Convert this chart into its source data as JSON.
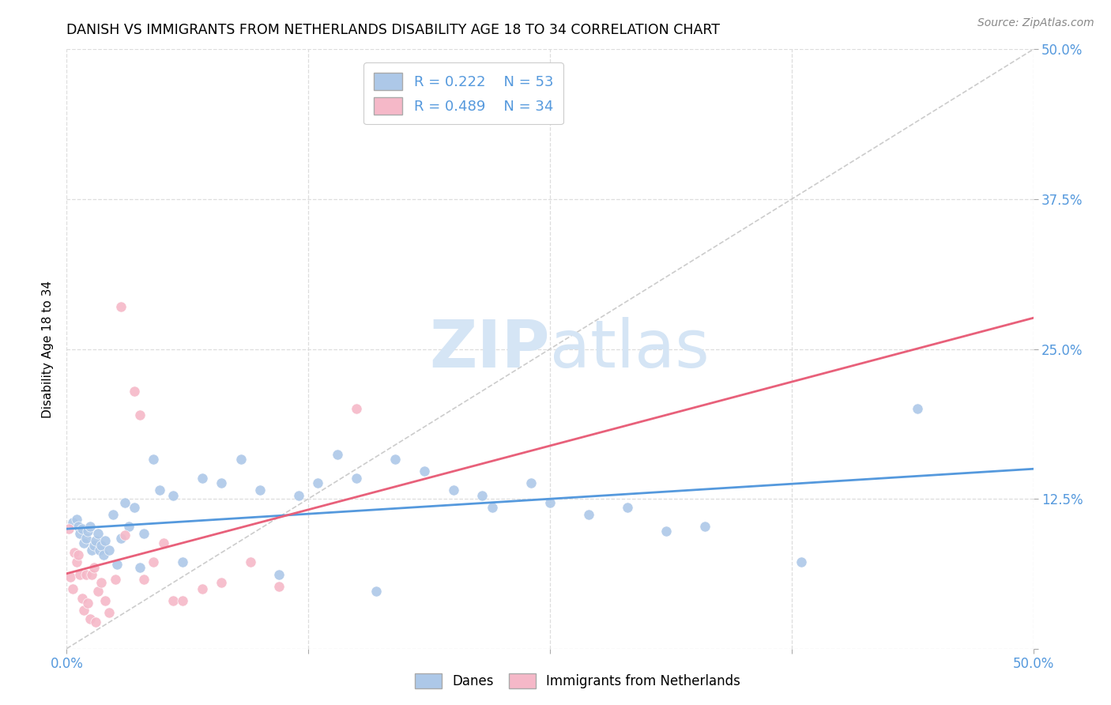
{
  "title": "DANISH VS IMMIGRANTS FROM NETHERLANDS DISABILITY AGE 18 TO 34 CORRELATION CHART",
  "source": "Source: ZipAtlas.com",
  "ylabel": "Disability Age 18 to 34",
  "xlim": [
    0.0,
    0.5
  ],
  "ylim": [
    0.0,
    0.5
  ],
  "dane_color": "#adc8e8",
  "immigrant_color": "#f5b8c8",
  "dane_line_color": "#5599dd",
  "immigrant_line_color": "#e8607a",
  "diagonal_color": "#cccccc",
  "grid_color": "#dddddd",
  "watermark_text": "ZIPatlas",
  "watermark_color": "#d5e5f5",
  "legend_r1": "R = 0.222",
  "legend_n1": "N = 53",
  "legend_r2": "R = 0.489",
  "legend_n2": "N = 34",
  "danes_points_x": [
    0.003,
    0.005,
    0.006,
    0.007,
    0.008,
    0.009,
    0.01,
    0.011,
    0.012,
    0.013,
    0.014,
    0.015,
    0.016,
    0.017,
    0.018,
    0.019,
    0.02,
    0.022,
    0.024,
    0.026,
    0.028,
    0.03,
    0.032,
    0.035,
    0.038,
    0.04,
    0.045,
    0.048,
    0.055,
    0.06,
    0.07,
    0.08,
    0.09,
    0.1,
    0.11,
    0.12,
    0.13,
    0.14,
    0.15,
    0.16,
    0.17,
    0.185,
    0.2,
    0.215,
    0.22,
    0.24,
    0.25,
    0.27,
    0.29,
    0.31,
    0.33,
    0.38,
    0.44
  ],
  "danes_points_y": [
    0.105,
    0.108,
    0.102,
    0.096,
    0.1,
    0.088,
    0.092,
    0.098,
    0.102,
    0.082,
    0.086,
    0.09,
    0.096,
    0.082,
    0.086,
    0.078,
    0.09,
    0.082,
    0.112,
    0.07,
    0.092,
    0.122,
    0.102,
    0.118,
    0.068,
    0.096,
    0.158,
    0.132,
    0.128,
    0.072,
    0.142,
    0.138,
    0.158,
    0.132,
    0.062,
    0.128,
    0.138,
    0.162,
    0.142,
    0.048,
    0.158,
    0.148,
    0.132,
    0.128,
    0.118,
    0.138,
    0.122,
    0.112,
    0.118,
    0.098,
    0.102,
    0.072,
    0.2
  ],
  "immigrants_points_x": [
    0.001,
    0.002,
    0.003,
    0.004,
    0.005,
    0.006,
    0.007,
    0.008,
    0.009,
    0.01,
    0.011,
    0.012,
    0.013,
    0.014,
    0.015,
    0.016,
    0.018,
    0.02,
    0.022,
    0.025,
    0.028,
    0.03,
    0.035,
    0.038,
    0.04,
    0.045,
    0.05,
    0.055,
    0.06,
    0.07,
    0.08,
    0.095,
    0.11,
    0.15
  ],
  "immigrants_points_y": [
    0.1,
    0.06,
    0.05,
    0.08,
    0.072,
    0.078,
    0.062,
    0.042,
    0.032,
    0.062,
    0.038,
    0.025,
    0.062,
    0.068,
    0.022,
    0.048,
    0.055,
    0.04,
    0.03,
    0.058,
    0.285,
    0.095,
    0.215,
    0.195,
    0.058,
    0.072,
    0.088,
    0.04,
    0.04,
    0.05,
    0.055,
    0.072,
    0.052,
    0.2
  ]
}
